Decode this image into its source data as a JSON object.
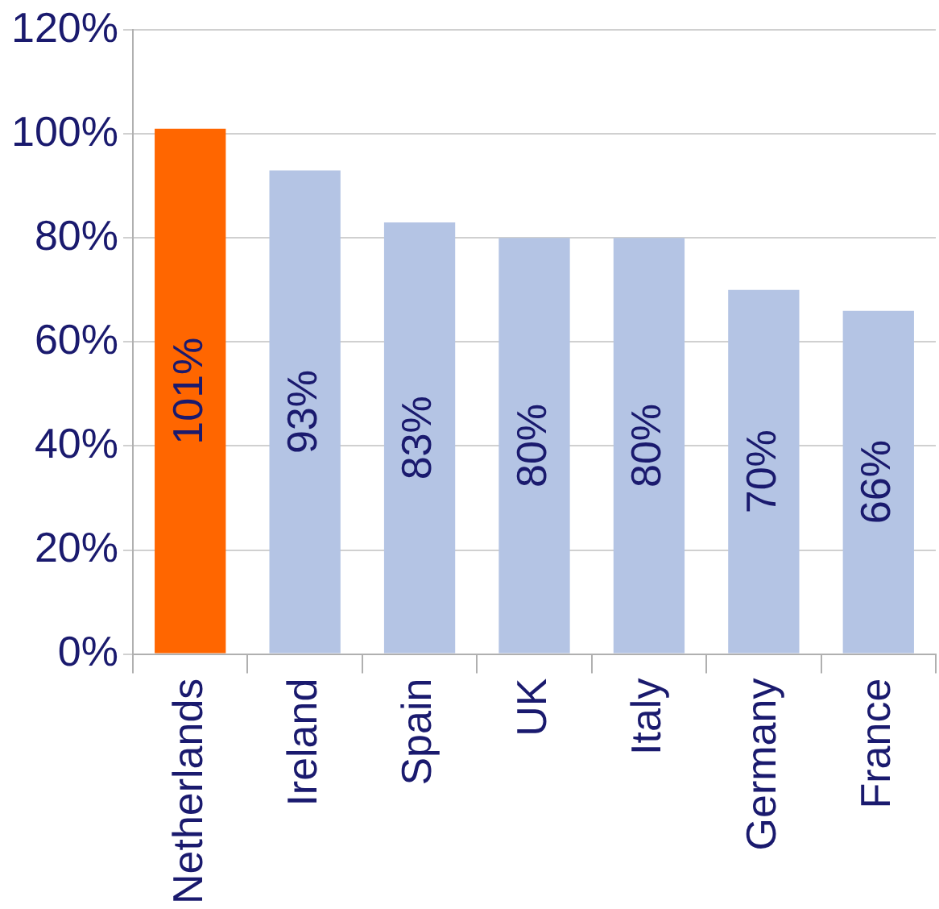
{
  "chart_data": {
    "type": "bar",
    "categories": [
      "Netherlands",
      "Ireland",
      "Spain",
      "UK",
      "Italy",
      "Germany",
      "France"
    ],
    "values": [
      101,
      93,
      83,
      80,
      80,
      70,
      66
    ],
    "colors": [
      "#ff6600",
      "#b4c4e4",
      "#b4c4e4",
      "#b4c4e4",
      "#b4c4e4",
      "#b4c4e4",
      "#b4c4e4"
    ],
    "value_labels": [
      "101%",
      "93%",
      "83%",
      "80%",
      "80%",
      "70%",
      "66%"
    ],
    "ylim": [
      0,
      120
    ],
    "yticks": [
      {
        "value": 0,
        "label": "0%"
      },
      {
        "value": 20,
        "label": "20%"
      },
      {
        "value": 40,
        "label": "40%"
      },
      {
        "value": 60,
        "label": "60%"
      },
      {
        "value": 80,
        "label": "80%"
      },
      {
        "value": 100,
        "label": "100%"
      },
      {
        "value": 120,
        "label": "120%"
      }
    ],
    "grid": "y",
    "legend": false
  }
}
